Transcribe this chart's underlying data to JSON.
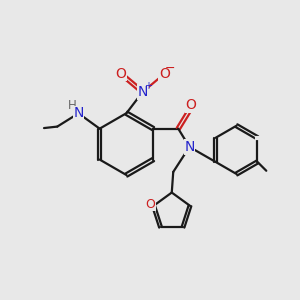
{
  "bg_color": "#e8e8e8",
  "bond_color": "#1a1a1a",
  "N_color": "#2424cc",
  "O_color": "#cc2020",
  "H_color": "#666666",
  "bond_width": 1.6,
  "figsize": [
    3.0,
    3.0
  ],
  "dpi": 100,
  "xlim": [
    0,
    10
  ],
  "ylim": [
    0,
    10
  ]
}
